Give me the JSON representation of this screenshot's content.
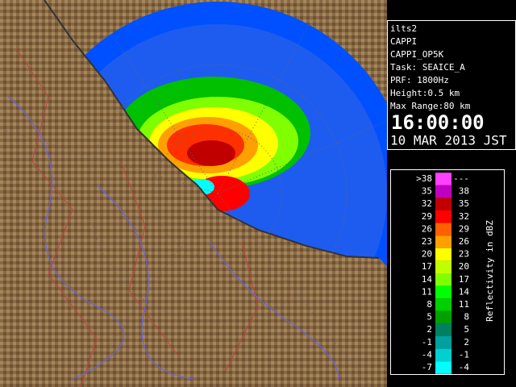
{
  "info": {
    "lines": [
      "ilts2",
      "CAPPI",
      "CAPPI_OP5K",
      "Task: SEAICE_A",
      "PRF: 1800Hz",
      "Height:0.5 km",
      "Max Range:80 km"
    ],
    "time": "16:00:00",
    "date": "10 MAR 2013 JST"
  },
  "legend": {
    "title": "Reflectivity in dBZ",
    "rows": [
      {
        "low": ">38",
        "high": "---",
        "color": "#ff40ff"
      },
      {
        "low": "35",
        "high": "38",
        "color": "#c000c0"
      },
      {
        "low": "32",
        "high": "35",
        "color": "#c00000"
      },
      {
        "low": "29",
        "high": "32",
        "color": "#ff0000"
      },
      {
        "low": "26",
        "high": "29",
        "color": "#ff6000"
      },
      {
        "low": "23",
        "high": "26",
        "color": "#ffa000"
      },
      {
        "low": "20",
        "high": "23",
        "color": "#ffff00"
      },
      {
        "low": "17",
        "high": "20",
        "color": "#c0ff00"
      },
      {
        "low": "14",
        "high": "17",
        "color": "#80ff00"
      },
      {
        "low": "11",
        "high": "14",
        "color": "#00ff00"
      },
      {
        "low": "8",
        "high": "11",
        "color": "#00d000"
      },
      {
        "low": "5",
        "high": "8",
        "color": "#00a000"
      },
      {
        "low": "2",
        "high": "5",
        "color": "#008060"
      },
      {
        "low": "-1",
        "high": "2",
        "color": "#00a0a0"
      },
      {
        "low": "-4",
        "high": "-1",
        "color": "#00d0d0"
      },
      {
        "low": "-7",
        "high": "-4",
        "color": "#00ffff"
      }
    ]
  }
}
